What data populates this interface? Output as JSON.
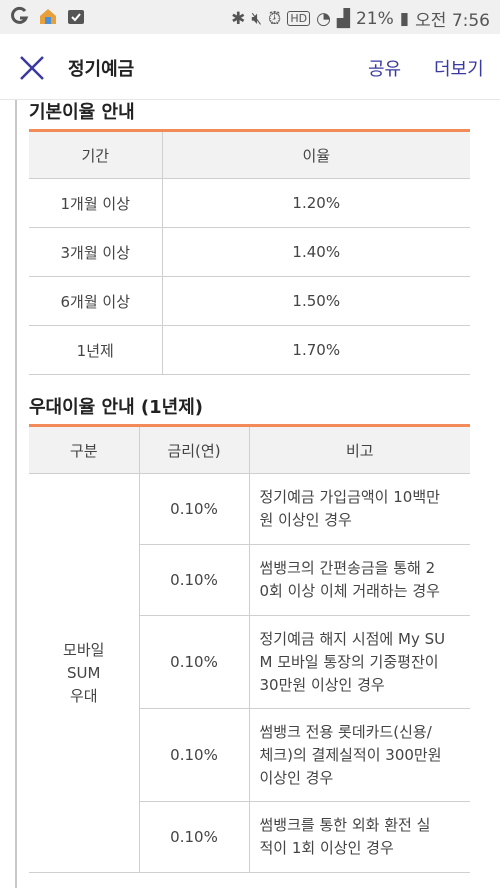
{
  "status_bar": {
    "battery": "21%",
    "time": "오전 7:56",
    "hd_badge": "HD"
  },
  "header": {
    "title": "정기예금",
    "share_label": "공유",
    "more_label": "더보기"
  },
  "basic_rate": {
    "title": "기본이율 안내",
    "columns": [
      "기간",
      "이율"
    ],
    "rows": [
      {
        "period": "1개월 이상",
        "rate": "1.20%"
      },
      {
        "period": "3개월 이상",
        "rate": "1.40%"
      },
      {
        "period": "6개월 이상",
        "rate": "1.50%"
      },
      {
        "period": "1년제",
        "rate": "1.70%"
      }
    ]
  },
  "benefit_rate": {
    "title": "우대이율 안내 (1년제)",
    "columns": [
      "구분",
      "금리(연)",
      "비고"
    ],
    "category_lines": [
      "모바일",
      "SUM",
      "우대"
    ],
    "rows": [
      {
        "rate": "0.10%",
        "note_lines": [
          "정기예금 가입금액이 10백만",
          "원 이상인 경우"
        ]
      },
      {
        "rate": "0.10%",
        "note_lines": [
          "썸뱅크의 간편송금을 통해 2",
          "0회 이상 이체 거래하는 경우"
        ]
      },
      {
        "rate": "0.10%",
        "note_lines": [
          "정기예금 해지 시점에 My SU",
          "M 모바일 통장의 기중평잔이",
          "30만원 이상인 경우"
        ]
      },
      {
        "rate": "0.10%",
        "note_lines": [
          "썸뱅크 전용 롯데카드(신용/",
          "체크)의 결제실적이 300만원",
          "이상인 경우"
        ]
      },
      {
        "rate": "0.10%",
        "note_lines": [
          "썸뱅크를 통한 외화 환전 실",
          "적이 1회 이상인 경우"
        ]
      }
    ]
  },
  "colors": {
    "accent_orange": "#f28a5a",
    "link_blue": "#3a3aa0",
    "header_bg": "#f2f2f2"
  }
}
